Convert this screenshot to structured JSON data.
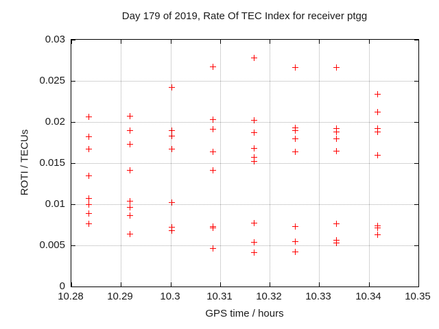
{
  "title": "Day 179 of 2019, Rate Of TEC Index for receiver ptgg",
  "chart_data": {
    "type": "scatter",
    "title": "Day 179 of 2019, Rate Of TEC Index for receiver ptgg",
    "xlabel": "GPS time / hours",
    "ylabel": "ROTI / TECUs",
    "xlim": [
      10.28,
      10.35
    ],
    "ylim": [
      0,
      0.03
    ],
    "x_ticks": [
      10.28,
      10.29,
      10.3,
      10.31,
      10.32,
      10.33,
      10.34,
      10.35
    ],
    "x_tick_labels": [
      "10.28",
      "10.29",
      "10.3",
      "10.31",
      "10.32",
      "10.33",
      "10.34",
      "10.35"
    ],
    "y_ticks": [
      0,
      0.005,
      0.01,
      0.015,
      0.02,
      0.025,
      0.03
    ],
    "y_tick_labels": [
      "0",
      "0.005",
      "0.01",
      "0.015",
      "0.02",
      "0.025",
      "0.03"
    ],
    "grid": true,
    "legend": "none",
    "marker": "plus",
    "marker_color": "#ff0000",
    "axis_color": "#000000",
    "grid_color": "#aaaaaa",
    "points": [
      [
        10.2835,
        0.0206
      ],
      [
        10.2835,
        0.0182
      ],
      [
        10.2835,
        0.0167
      ],
      [
        10.2835,
        0.0135
      ],
      [
        10.2835,
        0.0107
      ],
      [
        10.2835,
        0.01
      ],
      [
        10.2835,
        0.0089
      ],
      [
        10.2835,
        0.0076
      ],
      [
        10.2918,
        0.0207
      ],
      [
        10.2918,
        0.019
      ],
      [
        10.2918,
        0.0173
      ],
      [
        10.2918,
        0.0141
      ],
      [
        10.2918,
        0.0104
      ],
      [
        10.2918,
        0.0096
      ],
      [
        10.2918,
        0.0086
      ],
      [
        10.2918,
        0.0064
      ],
      [
        10.3002,
        0.0242
      ],
      [
        10.3002,
        0.019
      ],
      [
        10.3002,
        0.0183
      ],
      [
        10.3002,
        0.0167
      ],
      [
        10.3002,
        0.0102
      ],
      [
        10.3002,
        0.0072
      ],
      [
        10.3002,
        0.0068
      ],
      [
        10.3085,
        0.0267
      ],
      [
        10.3085,
        0.0203
      ],
      [
        10.3085,
        0.0191
      ],
      [
        10.3085,
        0.0164
      ],
      [
        10.3085,
        0.0141
      ],
      [
        10.3085,
        0.0073
      ],
      [
        10.3085,
        0.0071
      ],
      [
        10.3085,
        0.0046
      ],
      [
        10.3168,
        0.0278
      ],
      [
        10.3168,
        0.0202
      ],
      [
        10.3168,
        0.0187
      ],
      [
        10.3168,
        0.0168
      ],
      [
        10.3168,
        0.0157
      ],
      [
        10.3168,
        0.0152
      ],
      [
        10.3168,
        0.0077
      ],
      [
        10.3168,
        0.0054
      ],
      [
        10.3168,
        0.0041
      ],
      [
        10.3252,
        0.0266
      ],
      [
        10.3252,
        0.0193
      ],
      [
        10.3252,
        0.019
      ],
      [
        10.3252,
        0.018
      ],
      [
        10.3252,
        0.0164
      ],
      [
        10.3252,
        0.0073
      ],
      [
        10.3252,
        0.0055
      ],
      [
        10.3252,
        0.0042
      ],
      [
        10.3335,
        0.0266
      ],
      [
        10.3335,
        0.0192
      ],
      [
        10.3335,
        0.0188
      ],
      [
        10.3335,
        0.018
      ],
      [
        10.3335,
        0.0165
      ],
      [
        10.3335,
        0.0076
      ],
      [
        10.3335,
        0.0056
      ],
      [
        10.3335,
        0.0053
      ],
      [
        10.3418,
        0.0234
      ],
      [
        10.3418,
        0.0212
      ],
      [
        10.3418,
        0.0192
      ],
      [
        10.3418,
        0.0188
      ],
      [
        10.3418,
        0.016
      ],
      [
        10.3418,
        0.0074
      ],
      [
        10.3418,
        0.0071
      ],
      [
        10.3418,
        0.0063
      ]
    ]
  }
}
